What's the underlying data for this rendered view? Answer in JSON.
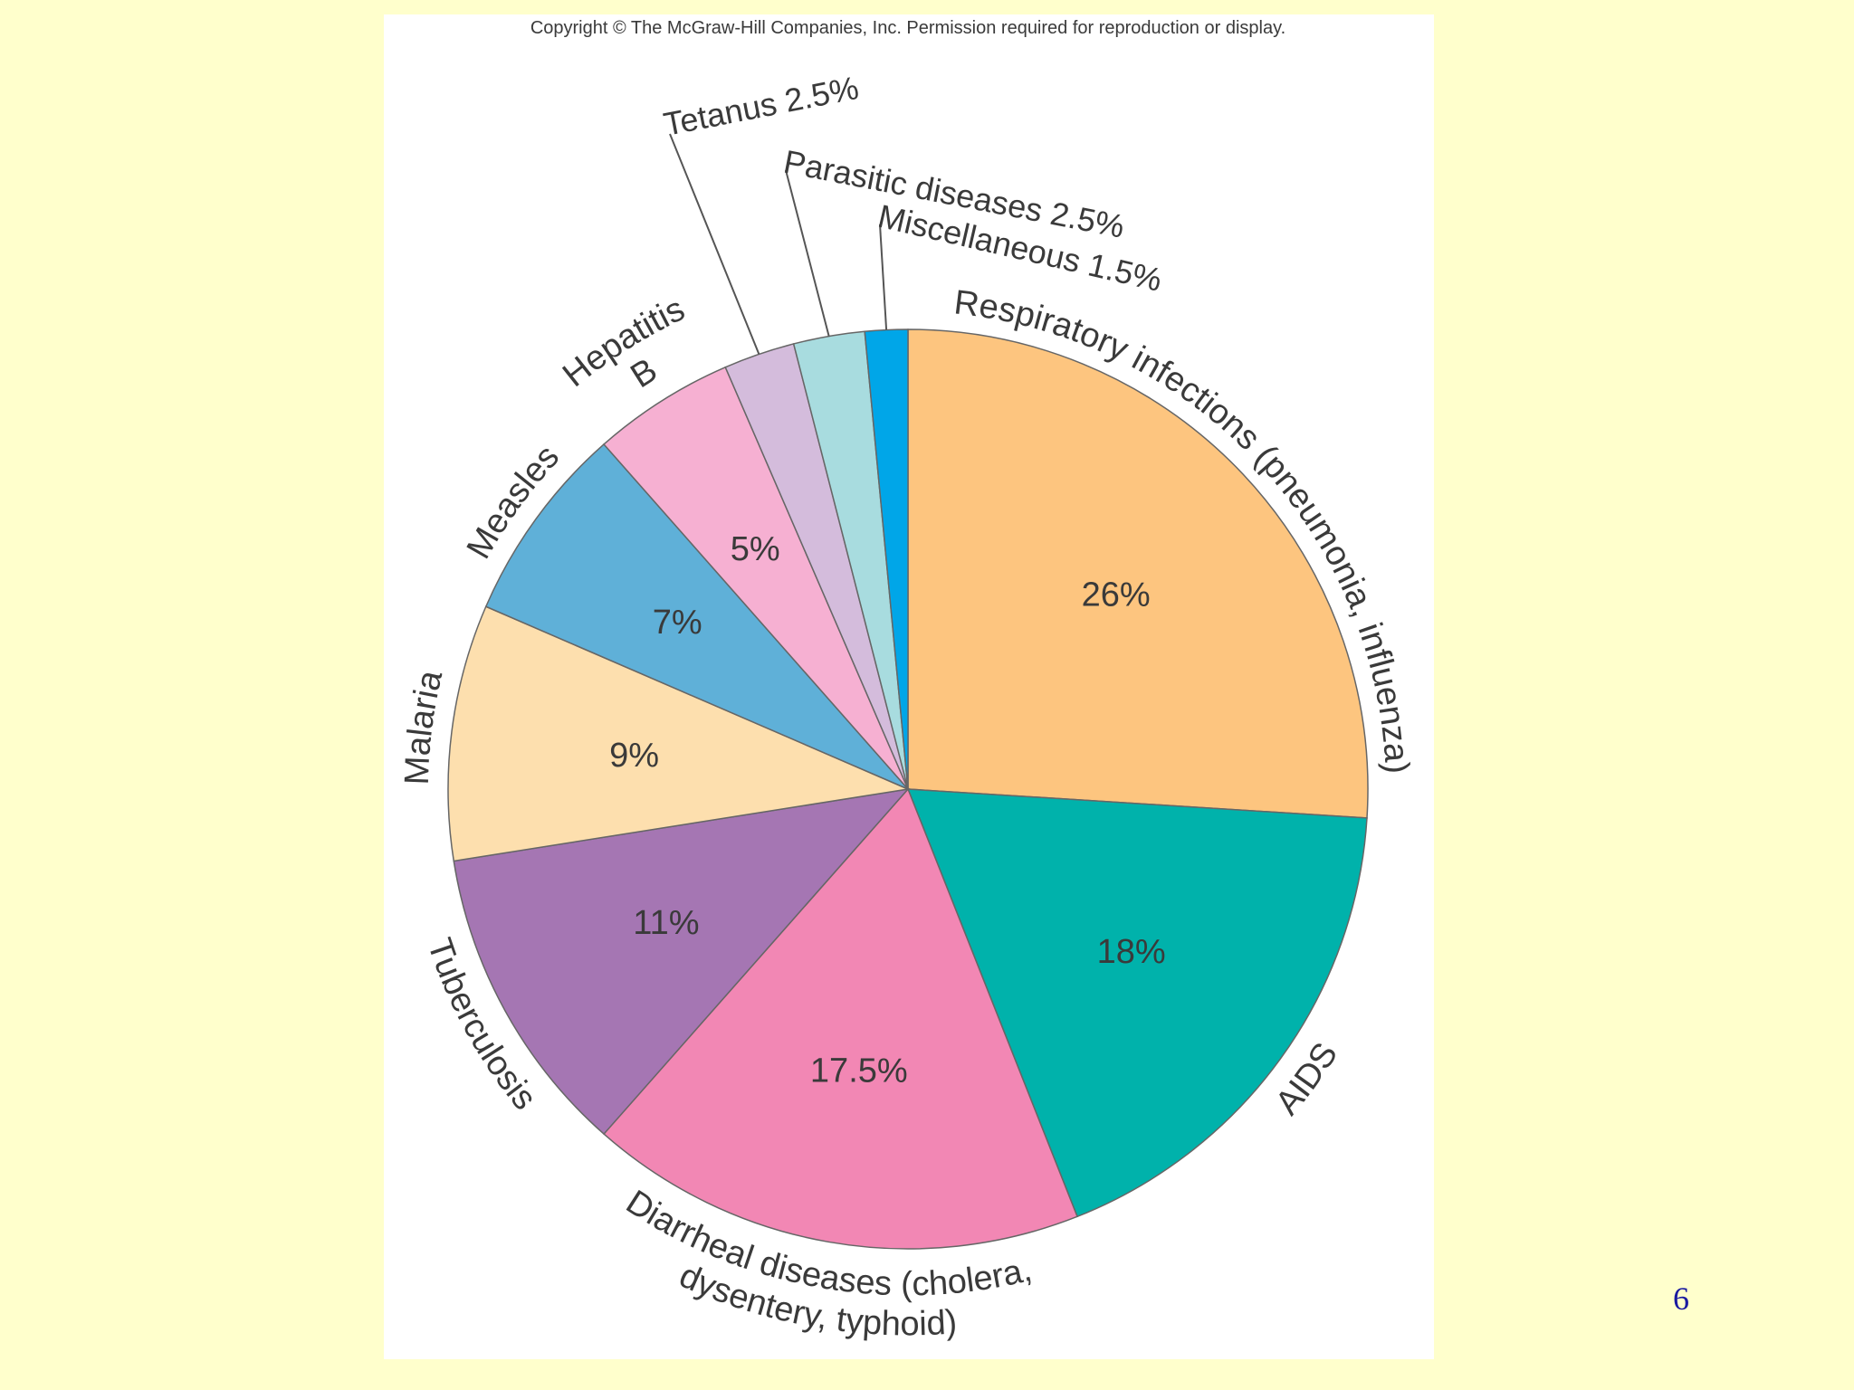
{
  "copyright": "Copyright © The McGraw-Hill Companies, Inc. Permission required for reproduction or display.",
  "page_number": "6",
  "chart_data": {
    "type": "pie",
    "title": "",
    "unit": "%",
    "start_angle_deg": 0,
    "direction": "clockwise",
    "slices": [
      {
        "name": "Respiratory infections (pneumonia, influenza)",
        "value": 26,
        "value_label": "26%",
        "label_lines": [
          "Respiratory infections (pneumonia, influenza)"
        ],
        "color": "#fdc57f"
      },
      {
        "name": "AIDS",
        "value": 18,
        "value_label": "18%",
        "label_lines": [
          "AIDS"
        ],
        "color": "#00b2ab"
      },
      {
        "name": "Diarrheal diseases (cholera, dysentery, typhoid)",
        "value": 17.5,
        "value_label": "17.5%",
        "label_lines": [
          "Diarrheal diseases (cholera,",
          "dysentery, typhoid)"
        ],
        "color": "#f287b4"
      },
      {
        "name": "Tuberculosis",
        "value": 11,
        "value_label": "11%",
        "label_lines": [
          "Tuberculosis"
        ],
        "color": "#a576b3"
      },
      {
        "name": "Malaria",
        "value": 9,
        "value_label": "9%",
        "label_lines": [
          "Malaria"
        ],
        "color": "#fddfae"
      },
      {
        "name": "Measles",
        "value": 7,
        "value_label": "7%",
        "label_lines": [
          "Measles"
        ],
        "color": "#5fb0d8"
      },
      {
        "name": "Hepatitis B",
        "value": 5,
        "value_label": "5%",
        "label_lines": [
          "Hepatitis",
          "B"
        ],
        "color": "#f6b0d2"
      },
      {
        "name": "Tetanus",
        "value": 2.5,
        "value_label": "",
        "label_lines": [
          "Tetanus 2.5%"
        ],
        "color": "#d4bcdc"
      },
      {
        "name": "Parasitic diseases",
        "value": 2.5,
        "value_label": "",
        "label_lines": [
          "Parasitic diseases 2.5%"
        ],
        "color": "#a8dcdf"
      },
      {
        "name": "Miscellaneous",
        "value": 1.5,
        "value_label": "",
        "label_lines": [
          "Miscellaneous 1.5%"
        ],
        "color": "#00a6e8"
      }
    ]
  }
}
